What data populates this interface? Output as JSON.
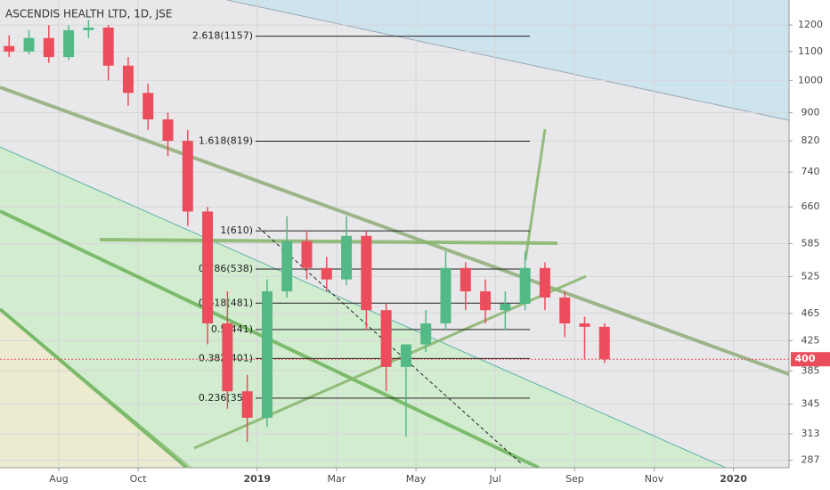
{
  "chart_data": {
    "type": "candlestick",
    "title": "ASCENDIS HEALTH LTD, 1D, JSE",
    "x": [
      -1.25,
      -0.75,
      -0.25,
      0.25,
      0.75,
      1.25,
      1.75,
      2.25,
      2.75,
      3.25,
      3.75,
      4.25,
      4.75,
      5.25,
      5.75,
      6.25,
      6.75,
      7.25,
      7.75,
      8.25,
      8.75,
      9.25,
      9.75,
      10.25,
      10.75,
      11.25,
      11.75,
      12.25,
      12.75,
      13.25,
      13.75
    ],
    "open": [
      1120,
      1100,
      1150,
      1080,
      1180,
      1190,
      1050,
      960,
      880,
      820,
      650,
      450,
      360,
      330,
      500,
      590,
      540,
      520,
      600,
      470,
      390,
      420,
      450,
      540,
      500,
      470,
      480,
      540,
      490,
      450,
      445
    ],
    "high": [
      1160,
      1180,
      1200,
      1200,
      1220,
      1200,
      1080,
      990,
      900,
      850,
      660,
      500,
      380,
      520,
      640,
      610,
      560,
      640,
      610,
      480,
      420,
      470,
      570,
      550,
      520,
      500,
      570,
      550,
      500,
      460,
      450
    ],
    "low": [
      1080,
      1090,
      1060,
      1070,
      1150,
      1000,
      920,
      850,
      780,
      620,
      420,
      340,
      305,
      320,
      490,
      520,
      500,
      510,
      440,
      360,
      310,
      410,
      440,
      470,
      450,
      440,
      470,
      470,
      430,
      400,
      395
    ],
    "close": [
      1100,
      1150,
      1080,
      1180,
      1190,
      1050,
      960,
      880,
      820,
      650,
      450,
      360,
      330,
      500,
      590,
      540,
      520,
      600,
      470,
      390,
      420,
      450,
      540,
      500,
      470,
      480,
      540,
      490,
      450,
      445,
      400
    ],
    "up_color": "#53b987",
    "down_color": "#eb4d5c",
    "xlim": [
      -1.48,
      18.4
    ],
    "xticks": [
      {
        "value": 0,
        "label": "Aug"
      },
      {
        "value": 2,
        "label": "Oct"
      },
      {
        "value": 5,
        "label": "2019"
      },
      {
        "value": 7,
        "label": "Mar"
      },
      {
        "value": 9,
        "label": "May"
      },
      {
        "value": 11,
        "label": "Jul"
      },
      {
        "value": 13,
        "label": "Sep"
      },
      {
        "value": 15,
        "label": "Nov"
      },
      {
        "value": 17,
        "label": "2020"
      }
    ],
    "ylim": [
      280,
      1303
    ],
    "yticks": [
      1200,
      1100,
      1000,
      900,
      820,
      740,
      660,
      585,
      525,
      465,
      425,
      385,
      345,
      313,
      287
    ],
    "log_scale": true,
    "grid": true,
    "fib_levels": [
      {
        "label": "2.618(1157)",
        "value": 1157
      },
      {
        "label": "1.618(819)",
        "value": 819
      },
      {
        "label": "1(610)",
        "value": 610
      },
      {
        "label": "0.786(538)",
        "value": 538
      },
      {
        "label": "0.618(481)",
        "value": 481
      },
      {
        "label": "0.5(441)",
        "value": 441
      },
      {
        "label": "0.382(401)",
        "value": 401
      },
      {
        "label": "0.236(352)",
        "value": 352
      }
    ],
    "last_price": 400
  }
}
